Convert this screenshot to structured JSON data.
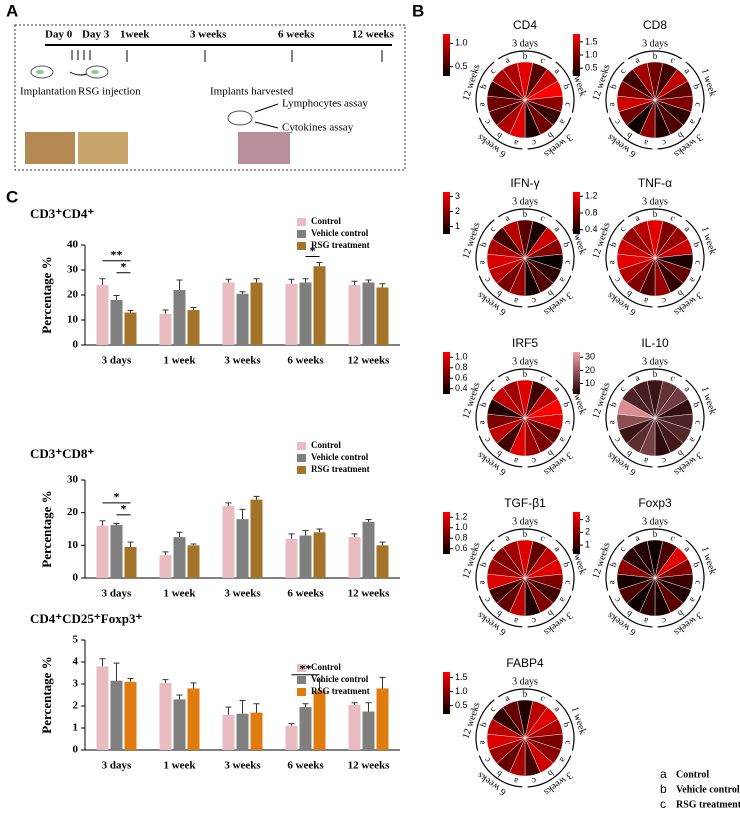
{
  "diagram": {
    "panel_labels": [
      "A",
      "B",
      "C"
    ],
    "timeline": [
      "Day 0",
      "Day 3",
      "1week",
      "3 weeks",
      "6 weeks",
      "12 weeks"
    ],
    "steps": {
      "implantation": "Implantation",
      "injection": "RSG injection",
      "harvest": "Implants harvested",
      "lymph": "Lymphocytes assay",
      "cyto": "Cytokines assay"
    }
  },
  "chart_data": [
    {
      "type": "bar",
      "title": "CD3⁺CD4⁺",
      "ylabel": "Percentage %",
      "categories": [
        "3 days",
        "1 week",
        "3 weeks",
        "6 weeks",
        "12 weeks"
      ],
      "series": [
        {
          "name": "Control",
          "color": "#e8bcc0",
          "values": [
            24,
            12.5,
            25,
            24.5,
            24
          ],
          "errors": [
            2.5,
            1.5,
            1.3,
            1.8,
            1.5
          ]
        },
        {
          "name": "Vehicle control",
          "color": "#7f7f7f",
          "values": [
            18,
            22,
            20.5,
            25,
            25
          ],
          "errors": [
            1.8,
            4,
            0.8,
            1.5,
            1
          ]
        },
        {
          "name": "RSG treatment",
          "color": "#a3732a",
          "values": [
            13,
            14,
            25,
            31.5,
            23
          ],
          "errors": [
            0.8,
            1,
            1.5,
            1.5,
            1.5
          ]
        }
      ],
      "ylim": [
        0,
        40
      ],
      "yticks": [
        0,
        10,
        20,
        30,
        40
      ],
      "annotations": [
        {
          "text": "*",
          "category": "3 days",
          "between": [
            "Vehicle control",
            "RSG treatment"
          ]
        },
        {
          "text": "**",
          "category": "3 days",
          "between": [
            "Control",
            "RSG treatment"
          ]
        },
        {
          "text": "*",
          "category": "6 weeks",
          "between": [
            "Vehicle control",
            "RSG treatment"
          ]
        }
      ]
    },
    {
      "type": "bar",
      "title": "CD3⁺CD8⁺",
      "ylabel": "Percentage %",
      "categories": [
        "3 days",
        "1 week",
        "3 weeks",
        "6 weeks",
        "12 weeks"
      ],
      "series": [
        {
          "name": "Control",
          "color": "#e8bcc0",
          "values": [
            16,
            7,
            22,
            12,
            12.5
          ],
          "errors": [
            1.5,
            1,
            1,
            1.5,
            1
          ]
        },
        {
          "name": "Vehicle control",
          "color": "#7f7f7f",
          "values": [
            16.2,
            12.5,
            18,
            13,
            17.2
          ],
          "errors": [
            0.5,
            1.5,
            3,
            1.5,
            0.7
          ]
        },
        {
          "name": "RSG treatment",
          "color": "#a3732a",
          "values": [
            9.5,
            10,
            24,
            14,
            10
          ],
          "errors": [
            1.5,
            0.4,
            1,
            1,
            1
          ]
        }
      ],
      "ylim": [
        0,
        30
      ],
      "yticks": [
        0,
        10,
        20,
        30
      ],
      "annotations": [
        {
          "text": "*",
          "category": "3 days",
          "between": [
            "Vehicle control",
            "RSG treatment"
          ]
        },
        {
          "text": "*",
          "category": "3 days",
          "between": [
            "Control",
            "RSG treatment"
          ]
        }
      ]
    },
    {
      "type": "bar",
      "title": "CD4⁺CD25⁺Foxp3⁺",
      "ylabel": "Percentage %",
      "categories": [
        "3 days",
        "1 week",
        "3 weeks",
        "6 weeks",
        "12 weeks"
      ],
      "series": [
        {
          "name": "Control",
          "color": "#e8bcc0",
          "values": [
            3.8,
            3.05,
            1.6,
            1.1,
            2.05
          ],
          "errors": [
            0.35,
            0.15,
            0.35,
            0.1,
            0.1
          ]
        },
        {
          "name": "Vehicle control",
          "color": "#7f7f7f",
          "values": [
            3.15,
            2.3,
            1.65,
            1.95,
            1.75
          ],
          "errors": [
            0.8,
            0.2,
            0.6,
            0.15,
            0.4
          ]
        },
        {
          "name": "RSG treatment",
          "color": "#e07b10",
          "values": [
            3.1,
            2.8,
            1.7,
            2.7,
            2.8
          ],
          "errors": [
            0.15,
            0.25,
            0.4,
            0.45,
            0.5
          ]
        }
      ],
      "ylim": [
        0,
        5
      ],
      "yticks": [
        0,
        1,
        2,
        3,
        4,
        5
      ],
      "annotations": [
        {
          "text": "**",
          "category": "6 weeks",
          "between": [
            "Control",
            "RSG treatment"
          ]
        }
      ]
    },
    {
      "type": "radial",
      "title": "CD4",
      "groups": [
        "3 days",
        "1 week",
        "3 weeks",
        "6 weeks",
        "12 weeks"
      ],
      "subgroups": [
        "a",
        "b",
        "c"
      ],
      "values": [
        0.9,
        1.1,
        0.6,
        1.0,
        1.2,
        0.8,
        0.5,
        0.7,
        0.4,
        1.1,
        0.9,
        0.6,
        0.7,
        0.5,
        0.9
      ],
      "clim": [
        0.3,
        1.2
      ],
      "cticks": [
        0.5,
        {
          "value": 1,
          "label": "1.0"
        }
      ],
      "cmap": [
        "#000000",
        "#ff0000"
      ]
    },
    {
      "type": "radial",
      "title": "CD8",
      "groups": [
        "3 days",
        "1 week",
        "3 weeks",
        "6 weeks",
        "12 weeks"
      ],
      "subgroups": [
        "a",
        "b",
        "c"
      ],
      "values": [
        1.2,
        0.9,
        0.6,
        1.4,
        0.8,
        1.0,
        0.5,
        0.7,
        0.4,
        1.1,
        0.3,
        0.9,
        1.5,
        1.0,
        0.6
      ],
      "clim": [
        0.2,
        1.8
      ],
      "cticks": [
        0.5,
        {
          "value": 1,
          "label": "1.0"
        },
        1.5
      ],
      "cmap": [
        "#000000",
        "#ff0000"
      ]
    },
    {
      "type": "radial",
      "title": "IFN-γ",
      "groups": [
        "3 days",
        "1 week",
        "3 weeks",
        "6 weeks",
        "12 weeks"
      ],
      "subgroups": [
        "a",
        "b",
        "c"
      ],
      "values": [
        2.5,
        1.5,
        0.8,
        2.8,
        2.0,
        0.6,
        1.0,
        1.4,
        0.7,
        2.2,
        1.8,
        2.6,
        2.9,
        2.4,
        1.2
      ],
      "clim": [
        0.5,
        3.3
      ],
      "cticks": [
        1,
        2,
        3
      ],
      "cmap": [
        "#000000",
        "#ff0000"
      ]
    },
    {
      "type": "radial",
      "title": "TNF-α",
      "groups": [
        "3 days",
        "1 week",
        "3 weeks",
        "6 weeks",
        "12 weeks"
      ],
      "subgroups": [
        "a",
        "b",
        "c"
      ],
      "values": [
        1.0,
        1.2,
        0.8,
        0.9,
        1.1,
        0.4,
        0.7,
        0.5,
        0.9,
        0.6,
        0.8,
        1.0,
        1.2,
        1.1,
        0.9
      ],
      "clim": [
        0.3,
        1.3
      ],
      "cticks": [
        0.4,
        0.8,
        1.2
      ],
      "cmap": [
        "#000000",
        "#ff0000"
      ]
    },
    {
      "type": "radial",
      "title": "IRF5",
      "groups": [
        "3 days",
        "1 week",
        "3 weeks",
        "6 weeks",
        "12 weeks"
      ],
      "subgroups": [
        "a",
        "b",
        "c"
      ],
      "values": [
        0.8,
        1.0,
        0.5,
        0.9,
        1.1,
        1.0,
        0.6,
        0.7,
        0.8,
        1.0,
        0.5,
        0.9,
        0.7,
        0.4,
        0.9
      ],
      "clim": [
        0.3,
        1.1
      ],
      "cticks": [
        0.4,
        0.6,
        0.8,
        {
          "value": 1,
          "label": "1.0"
        }
      ],
      "cmap": [
        "#000000",
        "#ff0000"
      ]
    },
    {
      "type": "radial",
      "title": "IL-10",
      "groups": [
        "3 days",
        "1 week",
        "3 weeks",
        "6 weeks",
        "12 weeks"
      ],
      "subgroups": [
        "a",
        "b",
        "c"
      ],
      "values": [
        8,
        6,
        12,
        14,
        5,
        9,
        10,
        7,
        4,
        15,
        11,
        6,
        18,
        30,
        9
      ],
      "clim": [
        2,
        34
      ],
      "cticks": [
        10,
        20,
        30
      ],
      "cmap": [
        "#200000",
        "#f4a0a8"
      ]
    },
    {
      "type": "radial",
      "title": "TGF-β1",
      "groups": [
        "3 days",
        "1 week",
        "3 weeks",
        "6 weeks",
        "12 weeks"
      ],
      "subgroups": [
        "a",
        "b",
        "c"
      ],
      "values": [
        1.0,
        1.2,
        0.8,
        1.1,
        1.2,
        0.9,
        0.7,
        0.9,
        0.6,
        1.1,
        0.8,
        0.7,
        1.2,
        1.0,
        0.9
      ],
      "clim": [
        0.5,
        1.3
      ],
      "cticks": [
        0.6,
        0.8,
        {
          "value": 1,
          "label": "1.0"
        },
        1.2
      ],
      "cmap": [
        "#000000",
        "#ff0000"
      ]
    },
    {
      "type": "radial",
      "title": "Foxp3",
      "groups": [
        "3 days",
        "1 week",
        "3 weeks",
        "6 weeks",
        "12 weeks"
      ],
      "subgroups": [
        "a",
        "b",
        "c"
      ],
      "values": [
        0.8,
        0.5,
        1.2,
        3.2,
        2.0,
        1.0,
        0.7,
        1.5,
        0.6,
        0.9,
        0.5,
        1.3,
        0.6,
        2.1,
        0.8
      ],
      "clim": [
        0.3,
        3.6
      ],
      "cticks": [
        1,
        2,
        3
      ],
      "cmap": [
        "#000000",
        "#ff0000"
      ]
    },
    {
      "type": "radial",
      "title": "FABP4",
      "groups": [
        "3 days",
        "1 week",
        "3 weeks",
        "6 weeks",
        "12 weeks"
      ],
      "subgroups": [
        "a",
        "b",
        "c"
      ],
      "values": [
        0.8,
        0.4,
        1.3,
        1.5,
        1.2,
        0.9,
        1.0,
        1.4,
        0.6,
        1.2,
        0.8,
        1.1,
        1.5,
        1.3,
        0.5
      ],
      "clim": [
        0.2,
        1.7
      ],
      "cticks": [
        0.5,
        {
          "value": 1,
          "label": "1.0"
        },
        1.5
      ],
      "cmap": [
        "#000000",
        "#ff0000"
      ]
    }
  ],
  "radial_legend": [
    {
      "letter": "a",
      "name": "Control"
    },
    {
      "letter": "b",
      "name": "Vehicle control"
    },
    {
      "letter": "c",
      "name": "RSG treatment"
    }
  ]
}
